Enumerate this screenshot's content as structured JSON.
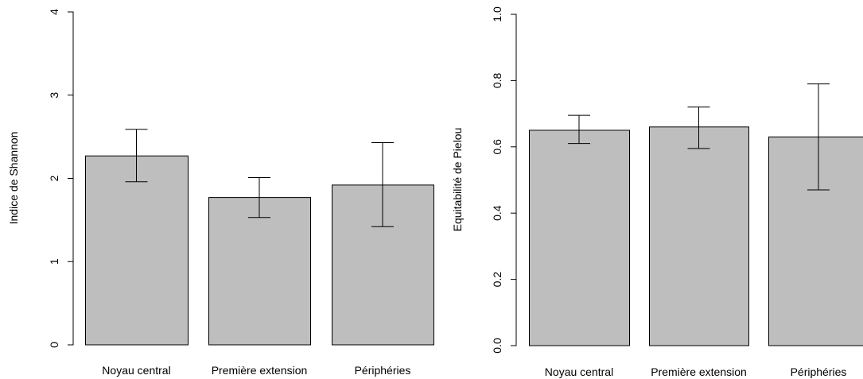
{
  "chart_data": [
    {
      "type": "bar",
      "categories": [
        "Noyau central",
        "Première extension",
        "Périphéries"
      ],
      "values": [
        2.27,
        1.77,
        1.92
      ],
      "error_low": [
        1.96,
        1.53,
        1.42
      ],
      "error_high": [
        2.59,
        2.01,
        2.43
      ],
      "ylabel": "Indice de Shannon",
      "ylim": [
        0,
        4
      ],
      "yticks": [
        "0",
        "1",
        "2",
        "3",
        "4"
      ],
      "bar_color": "#bebebe",
      "grid": false
    },
    {
      "type": "bar",
      "categories": [
        "Noyau central",
        "Première extension",
        "Périphéries"
      ],
      "values": [
        0.65,
        0.66,
        0.63
      ],
      "error_low": [
        0.61,
        0.595,
        0.47
      ],
      "error_high": [
        0.695,
        0.72,
        0.79
      ],
      "ylabel": "Equitabilité de Pielou",
      "ylim": [
        0,
        1
      ],
      "yticks": [
        "0.0",
        "0.2",
        "0.4",
        "0.6",
        "0.8",
        "1.0"
      ],
      "bar_color": "#bebebe",
      "grid": false
    }
  ]
}
